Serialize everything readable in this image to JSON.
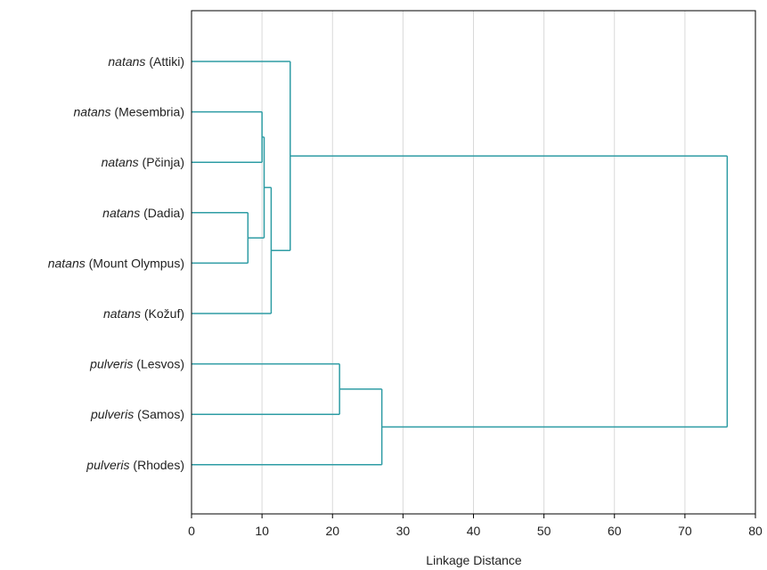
{
  "chart_data": {
    "type": "dendrogram",
    "orientation": "horizontal",
    "xlabel": "Linkage Distance",
    "xlim": [
      0,
      80
    ],
    "xticks": [
      0,
      10,
      20,
      30,
      40,
      50,
      60,
      70,
      80
    ],
    "grid": "vertical",
    "line_color": "#2e9ca4",
    "leaves": [
      {
        "id": "L0",
        "species": "natans",
        "locality": "(Attiki)"
      },
      {
        "id": "L1",
        "species": "natans",
        "locality": "(Mesembria)"
      },
      {
        "id": "L2",
        "species": "natans",
        "locality": "(Pčinja)"
      },
      {
        "id": "L3",
        "species": "natans",
        "locality": "(Dadia)"
      },
      {
        "id": "L4",
        "species": "natans",
        "locality": "(Mount Olympus)"
      },
      {
        "id": "L5",
        "species": "natans",
        "locality": "(Kožuf)"
      },
      {
        "id": "L6",
        "species": "pulveris",
        "locality": "(Lesvos)"
      },
      {
        "id": "L7",
        "species": "pulveris",
        "locality": "(Samos)"
      },
      {
        "id": "L8",
        "species": "pulveris",
        "locality": "(Rhodes)"
      }
    ],
    "merges": [
      {
        "id": "M1",
        "left": "L3",
        "right": "L4",
        "height": 8.0
      },
      {
        "id": "M2",
        "left": "L1",
        "right": "L2",
        "height": 10.0
      },
      {
        "id": "M3",
        "left": "M2",
        "right": "M1",
        "height": 10.3
      },
      {
        "id": "M4",
        "left": "M3",
        "right": "L5",
        "height": 11.3
      },
      {
        "id": "M5",
        "left": "L0",
        "right": "M4",
        "height": 14.0
      },
      {
        "id": "M6",
        "left": "L6",
        "right": "L7",
        "height": 21.0
      },
      {
        "id": "M7",
        "left": "M6",
        "right": "L8",
        "height": 27.0
      },
      {
        "id": "M8",
        "left": "M5",
        "right": "M7",
        "height": 76.0
      }
    ]
  }
}
